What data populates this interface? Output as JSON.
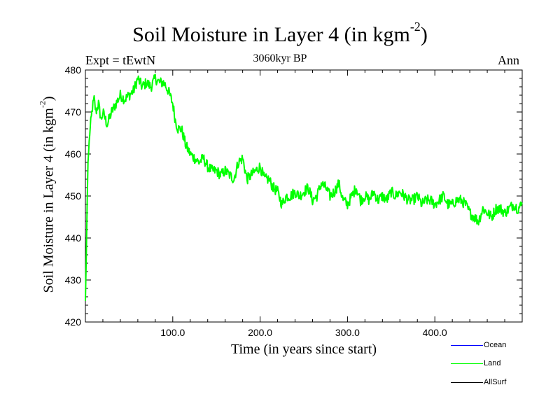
{
  "title": {
    "main": "Soil Moisture in Layer 4 (in kgm",
    "sup": "-2",
    "close": ")"
  },
  "header": {
    "expt": "Expt = tEwtN",
    "period": "3060kyr BP",
    "season": "Ann"
  },
  "axes": {
    "xlabel": "Time (in years since start)",
    "ylabel_main": "Soil Moisture in Layer 4 (in kgm",
    "ylabel_sup": "-2",
    "ylabel_close": ")"
  },
  "legend": [
    {
      "label": "Ocean",
      "color": "#0000ff"
    },
    {
      "label": "Land",
      "color": "#00ff00"
    },
    {
      "label": "AllSurf",
      "color": "#000000"
    }
  ],
  "chart_data": {
    "type": "line",
    "title": "Soil Moisture in Layer 4 (in kgm-2)",
    "xlabel": "Time (in years since start)",
    "ylabel": "Soil Moisture in Layer 4 (in kgm-2)",
    "xlim": [
      0,
      500
    ],
    "ylim": [
      420,
      480
    ],
    "xticks": [
      100,
      200,
      300,
      400
    ],
    "xtick_labels": [
      "100.0",
      "200.0",
      "300.0",
      "400.0"
    ],
    "yticks": [
      420,
      430,
      440,
      450,
      460,
      470,
      480
    ],
    "ytick_labels": [
      "420",
      "430",
      "440",
      "450",
      "460",
      "470",
      "480"
    ],
    "series": [
      {
        "name": "Land",
        "color": "#00ff00",
        "x": [
          0,
          1,
          2,
          3,
          5,
          8,
          10,
          12,
          15,
          18,
          20,
          25,
          30,
          35,
          40,
          45,
          50,
          55,
          60,
          65,
          70,
          75,
          80,
          85,
          90,
          95,
          100,
          103,
          106,
          110,
          115,
          120,
          125,
          130,
          135,
          140,
          145,
          150,
          155,
          160,
          165,
          170,
          175,
          180,
          185,
          190,
          195,
          200,
          205,
          210,
          215,
          220,
          225,
          230,
          235,
          240,
          245,
          250,
          255,
          260,
          265,
          270,
          275,
          280,
          285,
          290,
          295,
          300,
          305,
          310,
          315,
          320,
          325,
          330,
          335,
          340,
          345,
          350,
          355,
          360,
          365,
          370,
          375,
          380,
          385,
          390,
          395,
          400,
          405,
          410,
          415,
          420,
          425,
          430,
          435,
          440,
          445,
          450,
          455,
          460,
          465,
          470,
          475,
          480,
          485,
          490,
          495,
          500
        ],
        "values": [
          425,
          435,
          448,
          458,
          465,
          471,
          473,
          470,
          472,
          468,
          470,
          467,
          470,
          472,
          474,
          473,
          474,
          475,
          478,
          476,
          477,
          476,
          478,
          477,
          477,
          475,
          472,
          468,
          466,
          466,
          462,
          460,
          459,
          458,
          459,
          457,
          456,
          456,
          455,
          456,
          455,
          454,
          458,
          459,
          454,
          455,
          456,
          457,
          454,
          454,
          452,
          451,
          448,
          450,
          450,
          451,
          450,
          451,
          452,
          449,
          450,
          453,
          452,
          450,
          451,
          453,
          449,
          448,
          450,
          452,
          449,
          450,
          449,
          451,
          449,
          450,
          449,
          451,
          450,
          451,
          450,
          449,
          449,
          450,
          448,
          449,
          449,
          448,
          449,
          450,
          448,
          448,
          449,
          449,
          448,
          446,
          445,
          444,
          447,
          446,
          445,
          447,
          447,
          446,
          447,
          448,
          447,
          448
        ]
      }
    ],
    "legend": [
      "Ocean",
      "Land",
      "AllSurf"
    ],
    "legend_position": "bottom-right"
  }
}
